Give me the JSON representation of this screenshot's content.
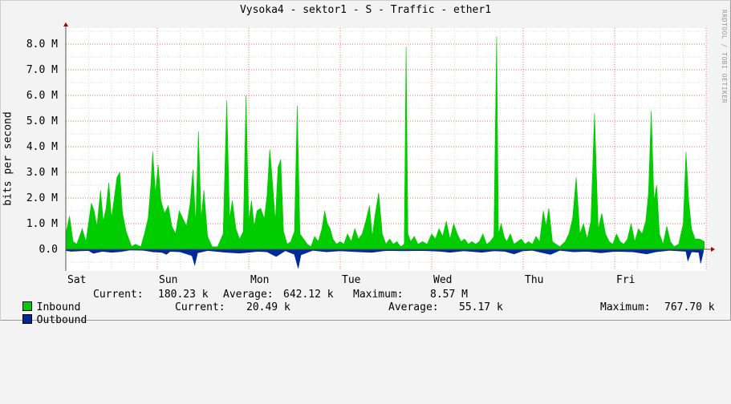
{
  "title": "Vysoka4 - sektor1 - S - Traffic - ether1",
  "watermark": "RRDTOOL / TOBI OETIKER",
  "colors": {
    "inbound": "#00cc00",
    "outbound": "#002a97",
    "grid_major": "#ff0000",
    "grid_minor": "#dddddd",
    "background": "#f3f3f3",
    "canvas": "#ffffff"
  },
  "chart_data": {
    "type": "area",
    "ylabel": "bits per second",
    "ylim": [
      -0.75,
      8.6
    ],
    "yticks": [
      "0.0",
      "1.0 M",
      "2.0 M",
      "3.0 M",
      "4.0 M",
      "5.0 M",
      "6.0 M",
      "7.0 M",
      "8.0 M"
    ],
    "ytick_values": [
      0,
      1,
      2,
      3,
      4,
      5,
      6,
      7,
      8
    ],
    "y_unit": "M bits/s",
    "x_range_days": [
      0,
      7
    ],
    "x_categories": [
      "Sat",
      "Sun",
      "Mon",
      "Tue",
      "Wed",
      "Thu",
      "Fri"
    ],
    "grid": true,
    "series": [
      {
        "name": "Inbound",
        "color": "#00cc00",
        "points": [
          [
            0.0,
            0.6
          ],
          [
            0.04,
            1.3
          ],
          [
            0.08,
            0.3
          ],
          [
            0.12,
            0.2
          ],
          [
            0.18,
            0.8
          ],
          [
            0.22,
            0.3
          ],
          [
            0.28,
            1.8
          ],
          [
            0.31,
            1.5
          ],
          [
            0.34,
            0.9
          ],
          [
            0.38,
            2.3
          ],
          [
            0.41,
            1.1
          ],
          [
            0.44,
            1.6
          ],
          [
            0.47,
            2.6
          ],
          [
            0.5,
            1.2
          ],
          [
            0.53,
            2.0
          ],
          [
            0.56,
            2.8
          ],
          [
            0.59,
            3.0
          ],
          [
            0.62,
            1.4
          ],
          [
            0.66,
            0.7
          ],
          [
            0.72,
            0.1
          ],
          [
            0.76,
            0.2
          ],
          [
            0.82,
            0.1
          ],
          [
            0.86,
            0.6
          ],
          [
            0.9,
            1.2
          ],
          [
            0.93,
            2.5
          ],
          [
            0.95,
            3.8
          ],
          [
            0.98,
            2.2
          ],
          [
            1.01,
            3.3
          ],
          [
            1.04,
            1.9
          ],
          [
            1.08,
            1.4
          ],
          [
            1.12,
            1.7
          ],
          [
            1.16,
            0.9
          ],
          [
            1.2,
            0.6
          ],
          [
            1.24,
            1.5
          ],
          [
            1.28,
            1.2
          ],
          [
            1.32,
            0.9
          ],
          [
            1.36,
            1.8
          ],
          [
            1.39,
            3.1
          ],
          [
            1.42,
            1.0
          ],
          [
            1.45,
            4.6
          ],
          [
            1.48,
            1.2
          ],
          [
            1.51,
            2.3
          ],
          [
            1.55,
            0.5
          ],
          [
            1.6,
            0.1
          ],
          [
            1.66,
            0.1
          ],
          [
            1.72,
            0.6
          ],
          [
            1.76,
            5.8
          ],
          [
            1.79,
            1.2
          ],
          [
            1.82,
            1.9
          ],
          [
            1.86,
            0.8
          ],
          [
            1.9,
            0.4
          ],
          [
            1.94,
            0.7
          ],
          [
            1.97,
            6.0
          ],
          [
            2.0,
            1.1
          ],
          [
            2.03,
            1.9
          ],
          [
            2.06,
            0.9
          ],
          [
            2.09,
            1.5
          ],
          [
            2.13,
            1.6
          ],
          [
            2.17,
            1.2
          ],
          [
            2.2,
            2.1
          ],
          [
            2.23,
            3.9
          ],
          [
            2.26,
            2.6
          ],
          [
            2.29,
            1.1
          ],
          [
            2.32,
            3.2
          ],
          [
            2.35,
            3.5
          ],
          [
            2.38,
            0.7
          ],
          [
            2.42,
            0.2
          ],
          [
            2.46,
            0.3
          ],
          [
            2.5,
            0.7
          ],
          [
            2.53,
            5.6
          ],
          [
            2.56,
            0.6
          ],
          [
            2.6,
            0.4
          ],
          [
            2.64,
            0.2
          ],
          [
            2.68,
            0.1
          ],
          [
            2.72,
            0.5
          ],
          [
            2.76,
            0.3
          ],
          [
            2.8,
            0.8
          ],
          [
            2.83,
            1.5
          ],
          [
            2.86,
            1.0
          ],
          [
            2.89,
            0.8
          ],
          [
            2.92,
            0.4
          ],
          [
            2.96,
            0.2
          ],
          [
            3.0,
            0.3
          ],
          [
            3.04,
            0.2
          ],
          [
            3.08,
            0.6
          ],
          [
            3.12,
            0.3
          ],
          [
            3.16,
            0.8
          ],
          [
            3.2,
            0.4
          ],
          [
            3.24,
            0.6
          ],
          [
            3.28,
            1.1
          ],
          [
            3.32,
            1.7
          ],
          [
            3.35,
            0.5
          ],
          [
            3.38,
            1.3
          ],
          [
            3.42,
            2.2
          ],
          [
            3.46,
            0.6
          ],
          [
            3.5,
            0.2
          ],
          [
            3.54,
            0.4
          ],
          [
            3.58,
            0.2
          ],
          [
            3.62,
            0.3
          ],
          [
            3.66,
            0.1
          ],
          [
            3.7,
            0.2
          ],
          [
            3.72,
            7.9
          ],
          [
            3.74,
            0.6
          ],
          [
            3.77,
            0.3
          ],
          [
            3.81,
            0.5
          ],
          [
            3.85,
            0.2
          ],
          [
            3.9,
            0.3
          ],
          [
            3.95,
            0.2
          ],
          [
            4.0,
            0.6
          ],
          [
            4.04,
            0.4
          ],
          [
            4.08,
            0.8
          ],
          [
            4.12,
            0.5
          ],
          [
            4.16,
            1.1
          ],
          [
            4.2,
            0.4
          ],
          [
            4.24,
            1.0
          ],
          [
            4.28,
            0.6
          ],
          [
            4.32,
            0.3
          ],
          [
            4.36,
            0.4
          ],
          [
            4.4,
            0.2
          ],
          [
            4.44,
            0.3
          ],
          [
            4.48,
            0.2
          ],
          [
            4.52,
            0.3
          ],
          [
            4.56,
            0.6
          ],
          [
            4.6,
            0.2
          ],
          [
            4.64,
            0.3
          ],
          [
            4.68,
            0.5
          ],
          [
            4.71,
            8.3
          ],
          [
            4.73,
            0.6
          ],
          [
            4.76,
            1.0
          ],
          [
            4.79,
            0.5
          ],
          [
            4.82,
            0.3
          ],
          [
            4.86,
            0.6
          ],
          [
            4.9,
            0.2
          ],
          [
            4.94,
            0.3
          ],
          [
            4.98,
            0.4
          ],
          [
            5.02,
            0.2
          ],
          [
            5.06,
            0.3
          ],
          [
            5.1,
            0.2
          ],
          [
            5.14,
            0.5
          ],
          [
            5.18,
            0.3
          ],
          [
            5.22,
            1.5
          ],
          [
            5.25,
            0.9
          ],
          [
            5.28,
            1.6
          ],
          [
            5.32,
            0.3
          ],
          [
            5.36,
            0.2
          ],
          [
            5.4,
            0.1
          ],
          [
            5.46,
            0.3
          ],
          [
            5.5,
            0.6
          ],
          [
            5.54,
            1.2
          ],
          [
            5.58,
            2.8
          ],
          [
            5.62,
            0.6
          ],
          [
            5.66,
            1.0
          ],
          [
            5.7,
            0.4
          ],
          [
            5.74,
            1.1
          ],
          [
            5.78,
            5.3
          ],
          [
            5.82,
            0.8
          ],
          [
            5.86,
            1.4
          ],
          [
            5.9,
            0.6
          ],
          [
            5.94,
            0.3
          ],
          [
            5.98,
            0.2
          ],
          [
            6.02,
            0.6
          ],
          [
            6.06,
            0.3
          ],
          [
            6.1,
            0.2
          ],
          [
            6.14,
            0.4
          ],
          [
            6.18,
            1.0
          ],
          [
            6.22,
            0.3
          ],
          [
            6.26,
            0.8
          ],
          [
            6.3,
            0.6
          ],
          [
            6.34,
            1.1
          ],
          [
            6.37,
            2.2
          ],
          [
            6.4,
            5.4
          ],
          [
            6.43,
            1.9
          ],
          [
            6.46,
            2.5
          ],
          [
            6.49,
            0.6
          ],
          [
            6.53,
            0.2
          ],
          [
            6.57,
            0.9
          ],
          [
            6.61,
            0.3
          ],
          [
            6.65,
            0.1
          ],
          [
            6.7,
            0.2
          ],
          [
            6.75,
            1.0
          ],
          [
            6.78,
            3.8
          ],
          [
            6.81,
            1.9
          ],
          [
            6.84,
            0.8
          ],
          [
            6.88,
            0.4
          ],
          [
            6.93,
            0.4
          ],
          [
            6.98,
            0.3
          ]
        ]
      },
      {
        "name": "Outbound",
        "color": "#002a97",
        "points": [
          [
            0.0,
            0.05
          ],
          [
            0.06,
            0.08
          ],
          [
            0.16,
            0.06
          ],
          [
            0.25,
            0.05
          ],
          [
            0.3,
            0.16
          ],
          [
            0.4,
            0.08
          ],
          [
            0.5,
            0.12
          ],
          [
            0.6,
            0.09
          ],
          [
            0.7,
            0.03
          ],
          [
            0.85,
            0.04
          ],
          [
            0.95,
            0.1
          ],
          [
            1.05,
            0.12
          ],
          [
            1.1,
            0.2
          ],
          [
            1.14,
            0.08
          ],
          [
            1.25,
            0.1
          ],
          [
            1.38,
            0.25
          ],
          [
            1.41,
            0.62
          ],
          [
            1.44,
            0.14
          ],
          [
            1.55,
            0.05
          ],
          [
            1.75,
            0.12
          ],
          [
            1.9,
            0.15
          ],
          [
            2.0,
            0.12
          ],
          [
            2.1,
            0.08
          ],
          [
            2.2,
            0.1
          ],
          [
            2.3,
            0.28
          ],
          [
            2.4,
            0.06
          ],
          [
            2.5,
            0.2
          ],
          [
            2.54,
            0.74
          ],
          [
            2.57,
            0.22
          ],
          [
            2.7,
            0.04
          ],
          [
            2.85,
            0.1
          ],
          [
            3.0,
            0.06
          ],
          [
            3.2,
            0.1
          ],
          [
            3.35,
            0.12
          ],
          [
            3.5,
            0.05
          ],
          [
            3.7,
            0.06
          ],
          [
            3.9,
            0.05
          ],
          [
            4.1,
            0.08
          ],
          [
            4.2,
            0.12
          ],
          [
            4.35,
            0.06
          ],
          [
            4.55,
            0.12
          ],
          [
            4.68,
            0.06
          ],
          [
            4.8,
            0.08
          ],
          [
            4.9,
            0.18
          ],
          [
            5.0,
            0.06
          ],
          [
            5.1,
            0.04
          ],
          [
            5.22,
            0.14
          ],
          [
            5.3,
            0.2
          ],
          [
            5.4,
            0.04
          ],
          [
            5.55,
            0.1
          ],
          [
            5.7,
            0.08
          ],
          [
            5.85,
            0.14
          ],
          [
            6.0,
            0.08
          ],
          [
            6.2,
            0.1
          ],
          [
            6.35,
            0.18
          ],
          [
            6.45,
            0.1
          ],
          [
            6.6,
            0.04
          ],
          [
            6.78,
            0.08
          ],
          [
            6.8,
            0.45
          ],
          [
            6.84,
            0.1
          ],
          [
            6.92,
            0.12
          ],
          [
            6.94,
            0.55
          ],
          [
            6.97,
            0.1
          ]
        ]
      }
    ]
  },
  "legend": {
    "inbound": {
      "name": "Inbound",
      "current_label": "Current:",
      "current": "180.23 k",
      "average_label": "Average:",
      "average": "642.12 k",
      "maximum_label": "Maximum:",
      "maximum": "8.57 M"
    },
    "outbound": {
      "name": "Outbound",
      "current_label": "Current:",
      "current": "20.49 k",
      "average_label": "Average:",
      "average": "55.17 k",
      "maximum_label": "Maximum:",
      "maximum": "767.70 k"
    }
  }
}
